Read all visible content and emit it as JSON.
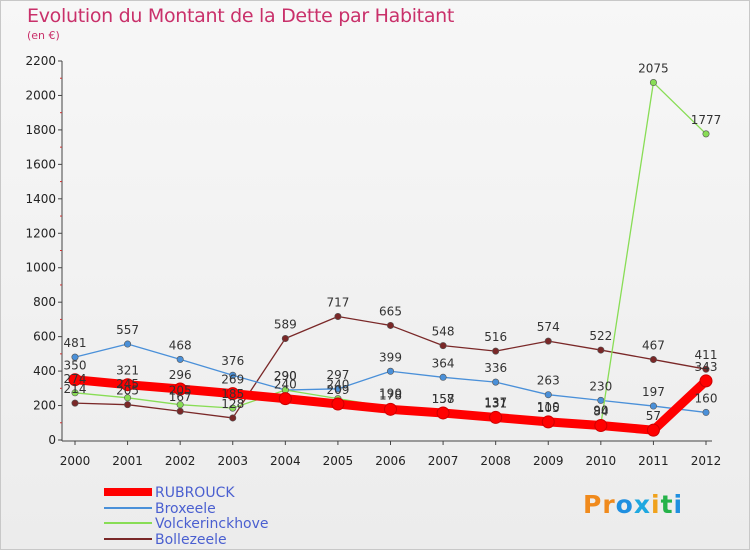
{
  "header": {
    "title": "Evolution du Montant de la Dette par Habitant",
    "subtitle": "(en €)"
  },
  "logo": {
    "text": "Proxiti",
    "colors": [
      "#f08a1c",
      "#f08a1c",
      "#1f8fe0",
      "#1fa8e0",
      "#f0a21c",
      "#26b34a",
      "#1f8fe0"
    ]
  },
  "chart_data": {
    "type": "line",
    "x": [
      "2000",
      "2001",
      "2002",
      "2003",
      "2004",
      "2005",
      "2006",
      "2007",
      "2008",
      "2009",
      "2010",
      "2011",
      "2012"
    ],
    "ylim": [
      0,
      2200
    ],
    "yticks": [
      0,
      200,
      400,
      600,
      800,
      1000,
      1200,
      1400,
      1600,
      1800,
      2000,
      2200
    ],
    "grid": false,
    "legend_position": "bottom-left",
    "series": [
      {
        "name": "RUBROUCK",
        "color": "#ff0000",
        "values": [
          350,
          321,
          296,
          269,
          240,
          209,
          178,
          157,
          131,
          105,
          84,
          57,
          343
        ]
      },
      {
        "name": "Broxeele",
        "color": "#4a90d9",
        "values": [
          481,
          557,
          468,
          376,
          290,
          297,
          399,
          364,
          336,
          263,
          230,
          197,
          160
        ]
      },
      {
        "name": "Volckerinckhove",
        "color": "#88dd55",
        "values": [
          274,
          245,
          205,
          185,
          290,
          240,
          190,
          158,
          137,
          110,
          90,
          2075,
          1777
        ]
      },
      {
        "name": "Bollezeele",
        "color": "#7a2828",
        "values": [
          214,
          205,
          167,
          128,
          589,
          717,
          665,
          548,
          516,
          574,
          522,
          467,
          411
        ]
      }
    ],
    "data_labels": [
      [
        "350",
        "321",
        "296",
        "269",
        "240",
        "209",
        "178",
        "157",
        "131",
        "105",
        "84",
        "57",
        "343"
      ],
      [
        "481",
        "557",
        "468",
        "376",
        "290",
        "297",
        "399",
        "364",
        "336",
        "263",
        "230",
        "197",
        "160"
      ],
      [
        "274",
        "245",
        "205",
        "185",
        "290",
        "240",
        "190",
        "158",
        "137",
        "110",
        "90",
        "2075",
        "1777"
      ],
      [
        "214",
        "205",
        "167",
        "128",
        "589",
        "717",
        "665",
        "548",
        "516",
        "574",
        "522",
        "467",
        "411"
      ]
    ]
  }
}
